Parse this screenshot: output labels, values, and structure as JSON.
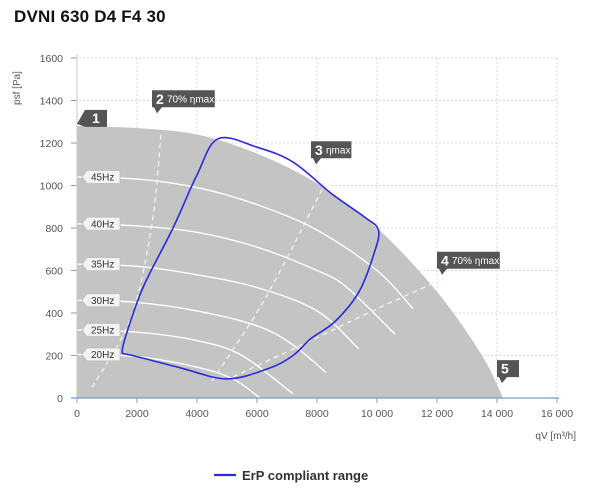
{
  "chart_data": {
    "type": "line",
    "title": "DVNI 630 D4 F4 30",
    "xlabel": "qV [m³/h]",
    "ylabel": "psf [Pa]",
    "xlim": [
      0,
      16000
    ],
    "ylim": [
      0,
      1600
    ],
    "x_ticks": [
      0,
      2000,
      4000,
      6000,
      8000,
      10000,
      12000,
      14000,
      16000
    ],
    "x_tick_labels": [
      "0",
      "2000",
      "4000",
      "6000",
      "8000",
      "10 000",
      "12 000",
      "14 000",
      "16 000"
    ],
    "y_ticks": [
      0,
      200,
      400,
      600,
      800,
      1000,
      1200,
      1400,
      1600
    ],
    "y_tick_labels": [
      "0",
      "200",
      "400",
      "600",
      "800",
      "1000",
      "1200",
      "1400",
      "1600"
    ],
    "grid": true,
    "legend": {
      "position": "bottom-center",
      "entries": [
        {
          "name": "ErP compliant range",
          "color": "#2b2bd9"
        }
      ]
    },
    "operating_envelope": {
      "fill_color": "#c4c4c4",
      "outer_curve": [
        [
          0,
          1280
        ],
        [
          2000,
          1270
        ],
        [
          4000,
          1240
        ],
        [
          6000,
          1150
        ],
        [
          8000,
          1010
        ],
        [
          10000,
          800
        ],
        [
          12000,
          500
        ],
        [
          13500,
          200
        ],
        [
          14200,
          0
        ]
      ]
    },
    "frequency_curves": {
      "color": "#ffffff",
      "series": [
        {
          "name": "45Hz",
          "points": [
            [
              0,
              1040
            ],
            [
              2000,
              1030
            ],
            [
              4000,
              990
            ],
            [
              6000,
              910
            ],
            [
              8000,
              790
            ],
            [
              10000,
              600
            ],
            [
              11200,
              420
            ]
          ]
        },
        {
          "name": "40Hz",
          "points": [
            [
              0,
              820
            ],
            [
              2000,
              810
            ],
            [
              4000,
              780
            ],
            [
              6000,
              710
            ],
            [
              8000,
              600
            ],
            [
              9000,
              520
            ],
            [
              10600,
              300
            ]
          ]
        },
        {
          "name": "35Hz",
          "points": [
            [
              0,
              630
            ],
            [
              2000,
              620
            ],
            [
              4000,
              580
            ],
            [
              6000,
              520
            ],
            [
              8000,
              410
            ],
            [
              9400,
              230
            ]
          ]
        },
        {
          "name": "30Hz",
          "points": [
            [
              0,
              460
            ],
            [
              2000,
              450
            ],
            [
              4000,
              410
            ],
            [
              6000,
              340
            ],
            [
              7200,
              250
            ],
            [
              8300,
              120
            ]
          ]
        },
        {
          "name": "25Hz",
          "points": [
            [
              0,
              320
            ],
            [
              2000,
              310
            ],
            [
              4000,
              270
            ],
            [
              5500,
              200
            ],
            [
              7200,
              20
            ]
          ]
        },
        {
          "name": "20Hz",
          "points": [
            [
              0,
              205
            ],
            [
              2000,
              195
            ],
            [
              4000,
              145
            ],
            [
              5200,
              90
            ],
            [
              6100,
              0
            ]
          ]
        }
      ]
    },
    "efficiency_lines": {
      "color": "#f2f2f2",
      "dash": true,
      "series": [
        {
          "name": "2 70% ηmax",
          "points": [
            [
              500,
              50
            ],
            [
              1800,
              380
            ],
            [
              2500,
              820
            ],
            [
              2800,
              1240
            ]
          ]
        },
        {
          "name": "3 ηmax",
          "points": [
            [
              4500,
              80
            ],
            [
              6200,
              450
            ],
            [
              7800,
              880
            ],
            [
              8300,
              1020
            ]
          ]
        },
        {
          "name": "4 70% ηmax",
          "points": [
            [
              5200,
              100
            ],
            [
              7500,
              250
            ],
            [
              10000,
              420
            ],
            [
              12200,
              560
            ]
          ]
        }
      ]
    },
    "erp_range": {
      "name": "ErP compliant range",
      "color": "#2b2bd9",
      "points": [
        [
          1500,
          210
        ],
        [
          1600,
          280
        ],
        [
          2200,
          520
        ],
        [
          3200,
          800
        ],
        [
          4000,
          1050
        ],
        [
          4700,
          1220
        ],
        [
          6000,
          1180
        ],
        [
          7200,
          1110
        ],
        [
          8500,
          960
        ],
        [
          9600,
          850
        ],
        [
          10050,
          790
        ],
        [
          9900,
          680
        ],
        [
          9400,
          500
        ],
        [
          8600,
          360
        ],
        [
          7800,
          280
        ],
        [
          7200,
          200
        ],
        [
          6400,
          140
        ],
        [
          5000,
          90
        ],
        [
          3500,
          140
        ],
        [
          2000,
          195
        ],
        [
          1500,
          210
        ]
      ]
    },
    "frequency_labels": [
      {
        "text": "45Hz",
        "y": 1040
      },
      {
        "text": "40Hz",
        "y": 820
      },
      {
        "text": "35Hz",
        "y": 630
      },
      {
        "text": "30Hz",
        "y": 460
      },
      {
        "text": "25Hz",
        "y": 320
      },
      {
        "text": "20Hz",
        "y": 205
      }
    ],
    "markers": [
      {
        "num": "1",
        "text": "",
        "x": 0,
        "y": 1290
      },
      {
        "num": "2",
        "text": "70% ηmax",
        "x": 2700,
        "y": 1340
      },
      {
        "num": "3",
        "text": "ηmax",
        "x": 8000,
        "y": 1100
      },
      {
        "num": "4",
        "text": "70% ηmax",
        "x": 12200,
        "y": 580
      },
      {
        "num": "5",
        "text": "",
        "x": 14200,
        "y": 70
      }
    ]
  }
}
